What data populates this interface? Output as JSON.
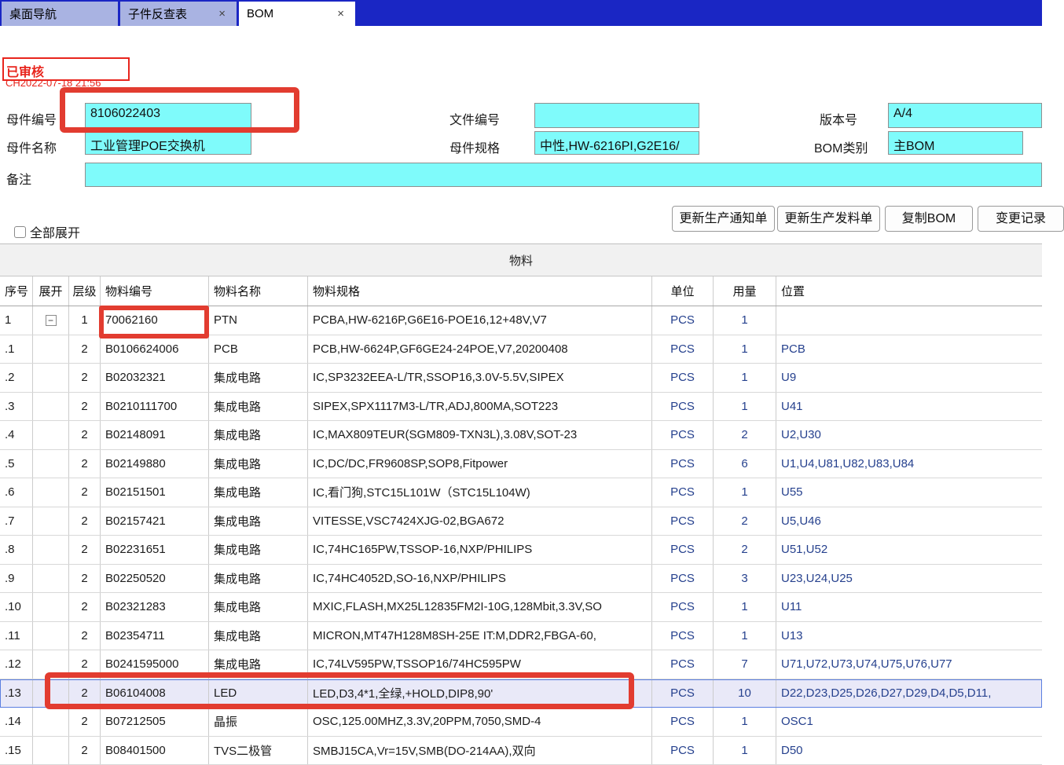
{
  "tabs": [
    {
      "label": "桌面导航",
      "closable": false,
      "active": false
    },
    {
      "label": "子件反查表",
      "closable": true,
      "active": false
    },
    {
      "label": "BOM",
      "closable": true,
      "active": true
    }
  ],
  "stamp": {
    "status": "已审核",
    "timestamp": "CH2022-07-18 21:56"
  },
  "form": {
    "parent_code_label": "母件编号",
    "parent_code": "8106022403",
    "parent_name_label": "母件名称",
    "parent_name": "工业管理POE交换机",
    "doc_no_label": "文件编号",
    "doc_no": "",
    "parent_spec_label": "母件规格",
    "parent_spec": "中性,HW-6216PI,G2E16/",
    "version_label": "版本号",
    "version": "A/4",
    "bom_type_label": "BOM类别",
    "bom_type": "主BOM",
    "remark_label": "备注",
    "remark": ""
  },
  "toolbar": {
    "expand_all_label": "全部展开",
    "buttons": [
      "更新生产通知单",
      "更新生产发料单",
      "复制BOM",
      "变更记录"
    ]
  },
  "table": {
    "title": "物料",
    "columns": [
      "序号",
      "展开",
      "层级",
      "物料编号",
      "物料名称",
      "物料规格",
      "单位",
      "用量",
      "位置"
    ],
    "rows": [
      {
        "seq": "1",
        "expand": true,
        "level": "1",
        "code": "70062160",
        "name": "PTN",
        "spec": "PCBA,HW-6216P,G6E16-POE16,12+48V,V7",
        "unit": "PCS",
        "qty": "1",
        "loc": "",
        "highlight": false
      },
      {
        "seq": ".1",
        "expand": false,
        "level": "2",
        "code": "B0106624006",
        "name": "PCB",
        "spec": "PCB,HW-6624P,GF6GE24-24POE,V7,20200408",
        "unit": "PCS",
        "qty": "1",
        "loc": "PCB",
        "highlight": false
      },
      {
        "seq": ".2",
        "expand": false,
        "level": "2",
        "code": "B02032321",
        "name": "集成电路",
        "spec": "IC,SP3232EEA-L/TR,SSOP16,3.0V-5.5V,SIPEX",
        "unit": "PCS",
        "qty": "1",
        "loc": "U9",
        "highlight": false
      },
      {
        "seq": ".3",
        "expand": false,
        "level": "2",
        "code": "B0210111700",
        "name": "集成电路",
        "spec": "SIPEX,SPX1117M3-L/TR,ADJ,800MA,SOT223",
        "unit": "PCS",
        "qty": "1",
        "loc": "U41",
        "highlight": false
      },
      {
        "seq": ".4",
        "expand": false,
        "level": "2",
        "code": "B02148091",
        "name": "集成电路",
        "spec": "IC,MAX809TEUR(SGM809-TXN3L),3.08V,SOT-23",
        "unit": "PCS",
        "qty": "2",
        "loc": "U2,U30",
        "highlight": false
      },
      {
        "seq": ".5",
        "expand": false,
        "level": "2",
        "code": "B02149880",
        "name": "集成电路",
        "spec": "IC,DC/DC,FR9608SP,SOP8,Fitpower",
        "unit": "PCS",
        "qty": "6",
        "loc": "U1,U4,U81,U82,U83,U84",
        "highlight": false
      },
      {
        "seq": ".6",
        "expand": false,
        "level": "2",
        "code": "B02151501",
        "name": "集成电路",
        "spec": "IC,看门狗,STC15L101W（STC15L104W)",
        "unit": "PCS",
        "qty": "1",
        "loc": "U55",
        "highlight": false
      },
      {
        "seq": ".7",
        "expand": false,
        "level": "2",
        "code": "B02157421",
        "name": "集成电路",
        "spec": "VITESSE,VSC7424XJG-02,BGA672",
        "unit": "PCS",
        "qty": "2",
        "loc": "U5,U46",
        "highlight": false
      },
      {
        "seq": ".8",
        "expand": false,
        "level": "2",
        "code": "B02231651",
        "name": "集成电路",
        "spec": "IC,74HC165PW,TSSOP-16,NXP/PHILIPS",
        "unit": "PCS",
        "qty": "2",
        "loc": "U51,U52",
        "highlight": false
      },
      {
        "seq": ".9",
        "expand": false,
        "level": "2",
        "code": "B02250520",
        "name": "集成电路",
        "spec": "IC,74HC4052D,SO-16,NXP/PHILIPS",
        "unit": "PCS",
        "qty": "3",
        "loc": "U23,U24,U25",
        "highlight": false
      },
      {
        "seq": ".10",
        "expand": false,
        "level": "2",
        "code": "B02321283",
        "name": "集成电路",
        "spec": "MXIC,FLASH,MX25L12835FM2I-10G,128Mbit,3.3V,SO",
        "unit": "PCS",
        "qty": "1",
        "loc": "U11",
        "highlight": false
      },
      {
        "seq": ".11",
        "expand": false,
        "level": "2",
        "code": "B02354711",
        "name": "集成电路",
        "spec": "MICRON,MT47H128M8SH-25E IT:M,DDR2,FBGA-60,",
        "unit": "PCS",
        "qty": "1",
        "loc": "U13",
        "highlight": false
      },
      {
        "seq": ".12",
        "expand": false,
        "level": "2",
        "code": "B0241595000",
        "name": "集成电路",
        "spec": "IC,74LV595PW,TSSOP16/74HC595PW",
        "unit": "PCS",
        "qty": "7",
        "loc": "U71,U72,U73,U74,U75,U76,U77",
        "highlight": false
      },
      {
        "seq": ".13",
        "expand": false,
        "level": "2",
        "code": "B06104008",
        "name": "LED",
        "spec": "LED,D3,4*1,全绿,+HOLD,DIP8,90'",
        "unit": "PCS",
        "qty": "10",
        "loc": "D22,D23,D25,D26,D27,D29,D4,D5,D11,",
        "highlight": true
      },
      {
        "seq": ".14",
        "expand": false,
        "level": "2",
        "code": "B07212505",
        "name": "晶振",
        "spec": "OSC,125.00MHZ,3.3V,20PPM,7050,SMD-4",
        "unit": "PCS",
        "qty": "1",
        "loc": "OSC1",
        "highlight": false
      },
      {
        "seq": ".15",
        "expand": false,
        "level": "2",
        "code": "B08401500",
        "name": "TVS二极管",
        "spec": "SMBJ15CA,Vr=15V,SMB(DO-214AA),双向",
        "unit": "PCS",
        "qty": "1",
        "loc": "D50",
        "highlight": false
      }
    ]
  },
  "colors": {
    "tabbar_bg": "#1a26c4",
    "tab_inactive_bg": "#a9b3e2",
    "input_bg": "#7ffbfb",
    "stamp_red": "#e8251d",
    "annotation_red": "#e23c30",
    "highlight_row_bg": "#e9e9f8",
    "highlight_row_border": "#5b7fe0"
  }
}
